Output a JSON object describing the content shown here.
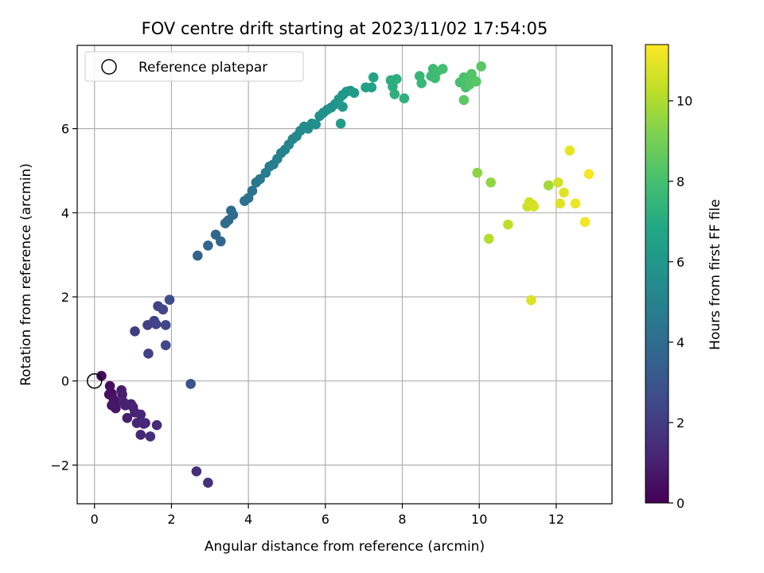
{
  "chart_data": {
    "type": "scatter",
    "title": "FOV centre drift starting at 2023/11/02 17:54:05",
    "xlabel": "Angular distance from reference (arcmin)",
    "ylabel": "Rotation from reference (arcmin)",
    "xlim": [
      -0.45,
      13.45
    ],
    "ylim": [
      -2.92,
      7.98
    ],
    "xticks": [
      "0",
      "2",
      "4",
      "6",
      "8",
      "10",
      "12"
    ],
    "xtick_values": [
      0,
      2,
      4,
      6,
      8,
      10,
      12
    ],
    "yticks": [
      "−2",
      "0",
      "2",
      "4",
      "6"
    ],
    "ytick_values": [
      -2,
      0,
      2,
      4,
      6
    ],
    "grid": true,
    "legend": {
      "label": "Reference platepar",
      "marker": "open-circle",
      "placement": "upper-left",
      "point": [
        0,
        0
      ]
    },
    "colorbar": {
      "label": "Hours from first FF file",
      "colormap": "viridis",
      "range": [
        0,
        11.4
      ],
      "ticks": [
        "0",
        "2",
        "4",
        "6",
        "8",
        "10"
      ],
      "tick_values": [
        0,
        2,
        4,
        6,
        8,
        10
      ]
    },
    "points": [
      [
        0.18,
        0.12,
        0.3
      ],
      [
        0.4,
        -0.12,
        0.4
      ],
      [
        0.38,
        -0.32,
        0.5
      ],
      [
        0.45,
        -0.3,
        0.5
      ],
      [
        0.5,
        -0.45,
        0.6
      ],
      [
        0.55,
        -0.5,
        0.6
      ],
      [
        0.45,
        -0.58,
        0.7
      ],
      [
        0.55,
        -0.65,
        0.7
      ],
      [
        0.7,
        -0.22,
        0.8
      ],
      [
        0.72,
        -0.32,
        0.9
      ],
      [
        0.75,
        -0.5,
        1.0
      ],
      [
        0.8,
        -0.58,
        1.0
      ],
      [
        0.95,
        -0.55,
        1.0
      ],
      [
        1.0,
        -0.62,
        1.1
      ],
      [
        0.85,
        -0.88,
        0.9
      ],
      [
        1.05,
        -0.75,
        1.1
      ],
      [
        1.2,
        -0.8,
        1.2
      ],
      [
        1.1,
        -1.0,
        1.2
      ],
      [
        1.28,
        -1.02,
        1.3
      ],
      [
        1.32,
        -1.0,
        1.3
      ],
      [
        1.2,
        -1.28,
        1.2
      ],
      [
        1.45,
        -1.32,
        1.5
      ],
      [
        1.62,
        -1.05,
        1.4
      ],
      [
        1.05,
        1.18,
        2.0
      ],
      [
        1.38,
        1.33,
        2.1
      ],
      [
        1.4,
        0.65,
        2.2
      ],
      [
        1.55,
        1.43,
        2.2
      ],
      [
        1.6,
        1.35,
        2.3
      ],
      [
        1.65,
        1.78,
        2.3
      ],
      [
        1.78,
        1.7,
        2.4
      ],
      [
        1.85,
        1.33,
        2.4
      ],
      [
        1.85,
        0.85,
        2.5
      ],
      [
        1.95,
        1.93,
        2.6
      ],
      [
        2.5,
        -0.07,
        2.9
      ],
      [
        2.65,
        -2.15,
        1.5
      ],
      [
        2.95,
        -2.42,
        1.6
      ],
      [
        2.68,
        2.98,
        3.6
      ],
      [
        2.95,
        3.22,
        3.8
      ],
      [
        3.15,
        3.48,
        3.8
      ],
      [
        3.28,
        3.32,
        3.8
      ],
      [
        3.4,
        3.75,
        3.9
      ],
      [
        3.48,
        3.82,
        3.9
      ],
      [
        3.55,
        4.05,
        3.9
      ],
      [
        3.6,
        3.95,
        4.0
      ],
      [
        3.9,
        4.28,
        4.2
      ],
      [
        4.0,
        4.35,
        4.3
      ],
      [
        4.1,
        4.52,
        4.4
      ],
      [
        4.2,
        4.72,
        4.5
      ],
      [
        4.3,
        4.8,
        4.6
      ],
      [
        4.45,
        4.95,
        4.7
      ],
      [
        4.55,
        5.1,
        4.8
      ],
      [
        4.65,
        5.15,
        4.9
      ],
      [
        4.75,
        5.28,
        5.0
      ],
      [
        4.85,
        5.42,
        5.0
      ],
      [
        4.95,
        5.5,
        5.1
      ],
      [
        5.05,
        5.62,
        5.2
      ],
      [
        5.15,
        5.75,
        5.3
      ],
      [
        5.25,
        5.82,
        5.3
      ],
      [
        5.35,
        5.95,
        5.4
      ],
      [
        5.45,
        6.05,
        5.4
      ],
      [
        5.55,
        6.0,
        5.5
      ],
      [
        5.65,
        6.12,
        5.5
      ],
      [
        5.75,
        6.1,
        5.6
      ],
      [
        5.85,
        6.3,
        5.6
      ],
      [
        5.95,
        6.38,
        5.7
      ],
      [
        6.05,
        6.45,
        5.7
      ],
      [
        6.15,
        6.5,
        5.8
      ],
      [
        6.25,
        6.58,
        5.9
      ],
      [
        6.35,
        6.7,
        6.0
      ],
      [
        6.45,
        6.8,
        6.0
      ],
      [
        6.55,
        6.88,
        6.1
      ],
      [
        6.65,
        6.9,
        6.1
      ],
      [
        6.75,
        6.85,
        6.2
      ],
      [
        6.4,
        6.12,
        6.3
      ],
      [
        6.45,
        6.52,
        6.2
      ],
      [
        7.05,
        6.98,
        6.5
      ],
      [
        7.2,
        6.98,
        6.5
      ],
      [
        7.25,
        7.22,
        6.6
      ],
      [
        7.7,
        7.15,
        7.1
      ],
      [
        7.75,
        7.0,
        7.1
      ],
      [
        7.8,
        6.82,
        7.2
      ],
      [
        7.85,
        7.18,
        7.2
      ],
      [
        8.05,
        6.72,
        7.3
      ],
      [
        8.45,
        7.25,
        7.5
      ],
      [
        8.5,
        7.08,
        7.6
      ],
      [
        8.75,
        7.25,
        7.7
      ],
      [
        8.8,
        7.42,
        7.7
      ],
      [
        8.85,
        7.2,
        7.8
      ],
      [
        8.9,
        7.35,
        7.8
      ],
      [
        9.05,
        7.42,
        7.9
      ],
      [
        9.5,
        7.1,
        8.0
      ],
      [
        9.6,
        7.22,
        8.1
      ],
      [
        9.65,
        6.98,
        8.1
      ],
      [
        9.7,
        7.18,
        8.2
      ],
      [
        9.75,
        7.05,
        8.3
      ],
      [
        9.8,
        7.3,
        8.3
      ],
      [
        9.85,
        7.15,
        8.3
      ],
      [
        9.92,
        7.12,
        8.4
      ],
      [
        10.05,
        7.48,
        8.4
      ],
      [
        9.6,
        6.68,
        8.5
      ],
      [
        9.95,
        4.95,
        9.4
      ],
      [
        10.3,
        4.72,
        9.5
      ],
      [
        10.25,
        3.38,
        10.1
      ],
      [
        10.75,
        3.72,
        10.3
      ],
      [
        11.25,
        4.15,
        10.5
      ],
      [
        11.3,
        4.25,
        10.6
      ],
      [
        11.38,
        4.2,
        10.6
      ],
      [
        11.42,
        4.15,
        10.7
      ],
      [
        11.35,
        1.92,
        10.8
      ],
      [
        11.8,
        4.65,
        9.8
      ],
      [
        12.05,
        4.72,
        10.6
      ],
      [
        12.1,
        4.22,
        10.9
      ],
      [
        12.2,
        4.48,
        10.9
      ],
      [
        12.35,
        5.48,
        11.0
      ],
      [
        12.5,
        4.22,
        11.1
      ],
      [
        12.75,
        3.78,
        11.2
      ],
      [
        12.85,
        4.92,
        11.3
      ]
    ]
  }
}
